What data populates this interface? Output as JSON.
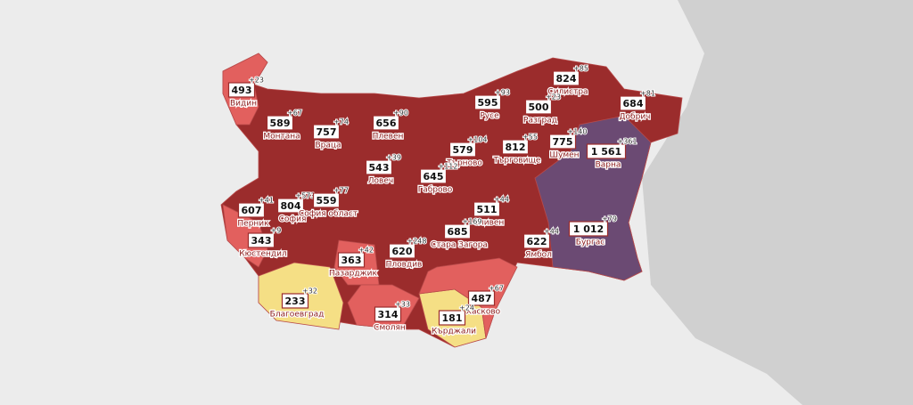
{
  "regions": [
    {
      "name": "Видин",
      "value": "493",
      "delta": "+23"
    },
    {
      "name": "Монтана",
      "value": "589",
      "delta": "+67"
    },
    {
      "name": "Враца",
      "value": "757",
      "delta": "+74"
    },
    {
      "name": "Плевен",
      "value": "656",
      "delta": "+90"
    },
    {
      "name": "Русе",
      "value": "595",
      "delta": "+93"
    },
    {
      "name": "Силистра",
      "value": "824",
      "delta": "+85"
    },
    {
      "name": "Разград",
      "value": "500",
      "delta": "+23"
    },
    {
      "name": "Добрич",
      "value": "684",
      "delta": "+81"
    },
    {
      "name": "Търново",
      "value": "579",
      "delta": "+104"
    },
    {
      "name": "Търговище",
      "value": "812",
      "delta": "+55"
    },
    {
      "name": "Шумен",
      "value": "775",
      "delta": "+140"
    },
    {
      "name": "Варна",
      "value": "1 561",
      "delta": "+361"
    },
    {
      "name": "Ловеч",
      "value": "543",
      "delta": "+39"
    },
    {
      "name": "Габрово",
      "value": "645",
      "delta": "+112"
    },
    {
      "name": "Перник",
      "value": "607",
      "delta": "+41"
    },
    {
      "name": "София",
      "value": "804",
      "delta": "+573"
    },
    {
      "name": "София област",
      "value": "559",
      "delta": "+77"
    },
    {
      "name": "Сливен",
      "value": "511",
      "delta": "+44"
    },
    {
      "name": "Стара Загора",
      "value": "685",
      "delta": "+169"
    },
    {
      "name": "Бургас",
      "value": "1 012",
      "delta": "+79"
    },
    {
      "name": "Кюстендил",
      "value": "343",
      "delta": "+9"
    },
    {
      "name": "Пазарджик",
      "value": "363",
      "delta": "+42"
    },
    {
      "name": "Пловдив",
      "value": "620",
      "delta": "+248"
    },
    {
      "name": "Ямбол",
      "value": "622",
      "delta": "+44"
    },
    {
      "name": "Благоевград",
      "value": "233",
      "delta": "+32"
    },
    {
      "name": "Смолян",
      "value": "314",
      "delta": "+33"
    },
    {
      "name": "Хасково",
      "value": "487",
      "delta": "+67"
    },
    {
      "name": "Кърджали",
      "value": "181",
      "delta": "+24"
    }
  ]
}
